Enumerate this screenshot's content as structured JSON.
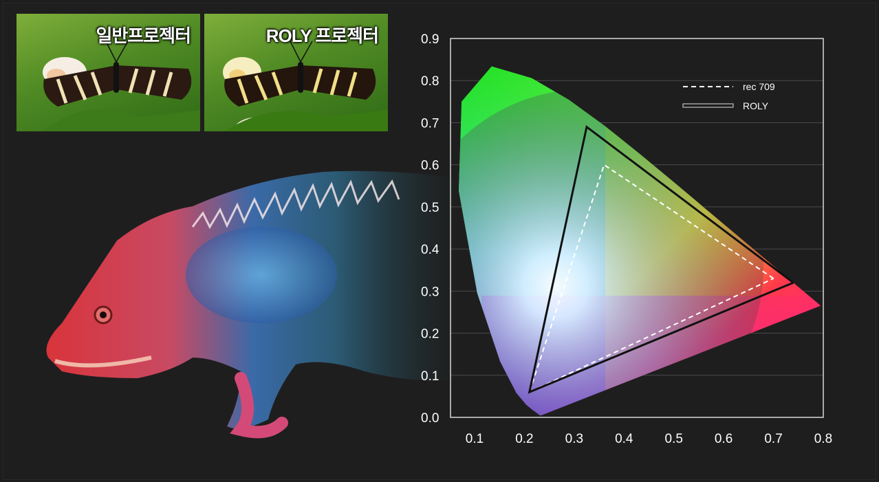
{
  "thumbnails": {
    "normal_label": "일반프로젝터",
    "roly_label": "ROLY 프로젝터"
  },
  "colors": {
    "background": "#1e1d1d",
    "axis": "#ffffff",
    "grid": "#4a4a4a",
    "rec709_line": "#ffffff",
    "roly_line": "#111111"
  },
  "chart_data": {
    "type": "scatter",
    "title": "",
    "xlabel": "",
    "ylabel": "",
    "xlim": [
      0.05,
      0.8
    ],
    "ylim": [
      0.0,
      0.9
    ],
    "x_ticks": [
      "0.1",
      "0.2",
      "0.3",
      "0.4",
      "0.5",
      "0.6",
      "0.7",
      "0.8"
    ],
    "y_ticks": [
      "0.0",
      "0.1",
      "0.2",
      "0.3",
      "0.4",
      "0.5",
      "0.6",
      "0.7",
      "0.8",
      "0.9"
    ],
    "grid": true,
    "legend_position": "top-right",
    "series": [
      {
        "name": "rec 709",
        "style": "dashed",
        "points": [
          [
            0.64,
            0.33
          ],
          [
            0.3,
            0.6
          ],
          [
            0.15,
            0.06
          ],
          [
            0.64,
            0.33
          ]
        ]
      },
      {
        "name": "ROLY",
        "style": "solid",
        "points": [
          [
            0.68,
            0.32
          ],
          [
            0.265,
            0.69
          ],
          [
            0.15,
            0.06
          ],
          [
            0.68,
            0.32
          ]
        ]
      }
    ],
    "spectral_locus": [
      [
        0.1741,
        0.005
      ],
      [
        0.1738,
        0.0049
      ],
      [
        0.1736,
        0.0049
      ],
      [
        0.1733,
        0.0048
      ],
      [
        0.1726,
        0.0048
      ],
      [
        0.1714,
        0.0051
      ],
      [
        0.1689,
        0.0069
      ],
      [
        0.1644,
        0.0109
      ],
      [
        0.1566,
        0.0177
      ],
      [
        0.144,
        0.0297
      ],
      [
        0.1241,
        0.0578
      ],
      [
        0.0913,
        0.1327
      ],
      [
        0.0454,
        0.295
      ],
      [
        0.0082,
        0.5384
      ],
      [
        0.0139,
        0.7502
      ],
      [
        0.0743,
        0.8338
      ],
      [
        0.1547,
        0.8059
      ],
      [
        0.2296,
        0.7543
      ],
      [
        0.3016,
        0.6923
      ],
      [
        0.3731,
        0.6245
      ],
      [
        0.4441,
        0.5547
      ],
      [
        0.5125,
        0.4866
      ],
      [
        0.5752,
        0.4242
      ],
      [
        0.627,
        0.3725
      ],
      [
        0.6658,
        0.334
      ],
      [
        0.6915,
        0.3083
      ],
      [
        0.7079,
        0.292
      ],
      [
        0.719,
        0.2809
      ],
      [
        0.726,
        0.274
      ],
      [
        0.73,
        0.27
      ],
      [
        0.7347,
        0.2653
      ]
    ]
  }
}
